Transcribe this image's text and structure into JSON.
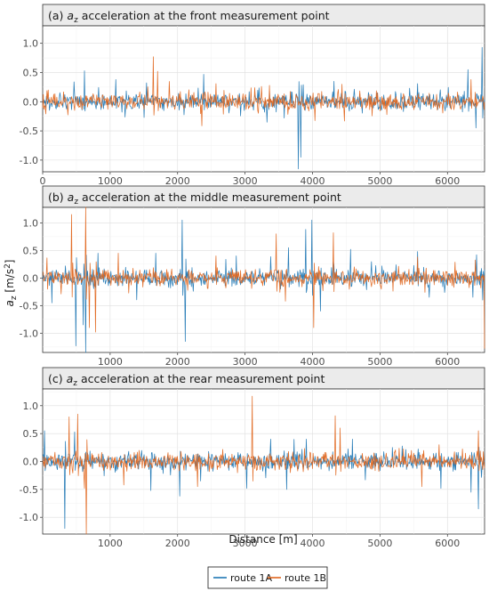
{
  "chart_data": {
    "type": "line",
    "facets": [
      {
        "title_prefix": "(a) ",
        "title_var": "a",
        "title_sub": "z",
        "title_rest": " acceleration at the front measurement point",
        "xlim": [
          0,
          6550
        ],
        "ylim": [
          -1.2,
          1.3
        ],
        "xticks": [
          0,
          1000,
          2000,
          3000,
          4000,
          5000,
          6000
        ],
        "yticks": [
          -1.0,
          -0.5,
          0.0,
          0.5,
          1.0
        ],
        "seed": 11,
        "spikes": {
          "route 1A": [
            [
              620,
              0.53
            ],
            [
              1080,
              0.38
            ],
            [
              1500,
              -0.27
            ],
            [
              2390,
              0.47
            ],
            [
              3580,
              -0.28
            ],
            [
              3790,
              -1.15
            ],
            [
              3830,
              -0.95
            ],
            [
              4320,
              0.35
            ],
            [
              5560,
              0.31
            ],
            [
              6300,
              0.55
            ],
            [
              6420,
              -0.45
            ],
            [
              6510,
              0.93
            ]
          ],
          "route 1B": [
            [
              1640,
              0.77
            ],
            [
              1700,
              0.52
            ],
            [
              2570,
              0.31
            ],
            [
              3360,
              0.28
            ],
            [
              4440,
              0.3
            ],
            [
              5100,
              -0.22
            ],
            [
              6350,
              0.38
            ]
          ]
        }
      },
      {
        "title_prefix": "(b) ",
        "title_var": "a",
        "title_sub": "z",
        "title_rest": " acceleration at the middle measurement point",
        "xlim": [
          0,
          6550
        ],
        "ylim": [
          -1.35,
          1.28
        ],
        "xticks": [
          1000,
          2000,
          3000,
          4000,
          5000,
          6000
        ],
        "yticks": [
          -1.0,
          -0.5,
          0.0,
          0.5,
          1.0
        ],
        "seed": 23,
        "spikes": {
          "route 1A": [
            [
              140,
              -0.45
            ],
            [
              490,
              -1.23
            ],
            [
              600,
              -0.85
            ],
            [
              640,
              -1.38
            ],
            [
              820,
              0.45
            ],
            [
              1680,
              0.45
            ],
            [
              2070,
              1.05
            ],
            [
              2110,
              -1.15
            ],
            [
              2870,
              0.4
            ],
            [
              3640,
              0.55
            ],
            [
              3900,
              0.88
            ],
            [
              3990,
              1.05
            ],
            [
              4120,
              -0.6
            ],
            [
              4560,
              0.52
            ],
            [
              5560,
              0.48
            ],
            [
              6380,
              -0.35
            ],
            [
              6430,
              0.42
            ],
            [
              6520,
              -0.4
            ]
          ],
          "route 1B": [
            [
              430,
              1.15
            ],
            [
              640,
              1.28
            ],
            [
              690,
              -0.9
            ],
            [
              780,
              -0.98
            ],
            [
              1120,
              0.45
            ],
            [
              2570,
              0.4
            ],
            [
              3460,
              0.8
            ],
            [
              3600,
              -0.42
            ],
            [
              4020,
              -0.9
            ],
            [
              4310,
              0.82
            ],
            [
              5560,
              0.38
            ],
            [
              6550,
              -1.28
            ]
          ]
        }
      },
      {
        "title_prefix": "(c) ",
        "title_var": "a",
        "title_sub": "z",
        "title_rest": " acceleration at the rear measurement point",
        "xlim": [
          0,
          6550
        ],
        "ylim": [
          -1.3,
          1.3
        ],
        "xticks": [
          1000,
          2000,
          3000,
          4000,
          5000,
          6000
        ],
        "yticks": [
          -1.0,
          -0.5,
          0.0,
          0.5,
          1.0
        ],
        "seed": 37,
        "spikes": {
          "route 1A": [
            [
              30,
              0.55
            ],
            [
              330,
              -1.2
            ],
            [
              470,
              0.53
            ],
            [
              1600,
              -0.52
            ],
            [
              2030,
              -0.62
            ],
            [
              3020,
              -0.48
            ],
            [
              3380,
              0.4
            ],
            [
              3620,
              -0.5
            ],
            [
              3910,
              0.4
            ],
            [
              4590,
              0.4
            ],
            [
              5900,
              -0.48
            ],
            [
              6350,
              -0.55
            ],
            [
              6460,
              -0.85
            ]
          ],
          "route 1B": [
            [
              390,
              0.8
            ],
            [
              520,
              0.85
            ],
            [
              650,
              -1.3
            ],
            [
              620,
              -0.48
            ],
            [
              1200,
              -0.42
            ],
            [
              2300,
              -0.45
            ],
            [
              3110,
              1.17
            ],
            [
              4340,
              0.82
            ],
            [
              4410,
              0.6
            ],
            [
              5620,
              -0.45
            ],
            [
              6460,
              0.55
            ]
          ]
        }
      }
    ],
    "series": [
      {
        "name": "route 1A",
        "color": "#1f77b4"
      },
      {
        "name": "route 1B",
        "color": "#e0661e"
      }
    ],
    "xlabel": "Distance [m]",
    "ylabel_var": "a",
    "ylabel_sub": "z",
    "ylabel_rest": " [m/s",
    "ylabel_sup": "2",
    "ylabel_close": "]",
    "grid": true,
    "legend_position": "bottom"
  }
}
